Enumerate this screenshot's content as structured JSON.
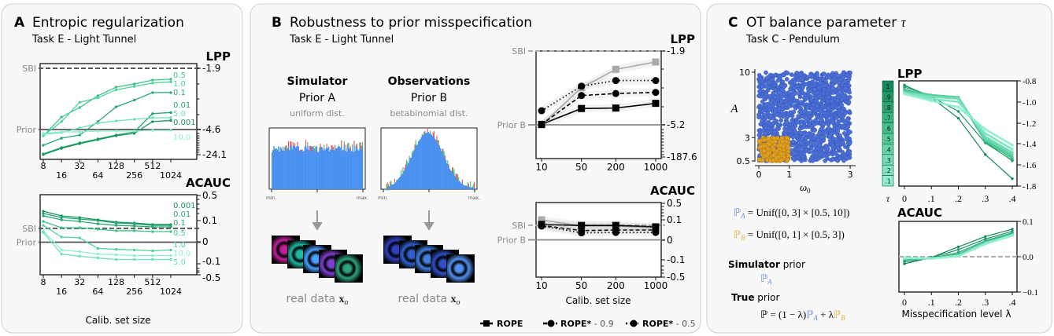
{
  "panels": {
    "A": {
      "letter": "A",
      "title": "Entropic regularization",
      "subtitle": "Task E - Light Tunnel"
    },
    "B": {
      "letter": "B",
      "title": "Robustness to prior misspecification",
      "subtitle": "Task E - Light Tunnel",
      "simulator": {
        "heading": "Simulator",
        "prior": "Prior A",
        "dist": "uniform dist.",
        "min": "min.",
        "max": "max.",
        "caption": "real data ",
        "caption_math": "x",
        "caption_sub": "o",
        "image_colors": [
          "#c0209a",
          "#20b8a0",
          "#4aa0ff",
          "#8040d0",
          "#30a080"
        ]
      },
      "observations": {
        "heading": "Observations",
        "prior": "Prior B",
        "dist": "betabinomial dist.",
        "min": "min.",
        "max": "max.",
        "caption": "real data ",
        "caption_math": "x",
        "caption_sub": "o",
        "image_colors": [
          "#3040c0",
          "#3060d0",
          "#4080e0",
          "#3050c8",
          "#5090f0"
        ]
      },
      "legend": [
        {
          "label": "ROPE",
          "suffix": "",
          "style": "solid",
          "marker": "square"
        },
        {
          "label": "ROPE*",
          "suffix": " - 0.9",
          "style": "dashed",
          "marker": "circle"
        },
        {
          "label": "ROPE*",
          "suffix": " - 0.5",
          "style": "dotted",
          "marker": "circle"
        }
      ]
    },
    "C": {
      "letter": "C",
      "title": "OT balance parameter ",
      "title_symbol": "τ",
      "subtitle": "Task C - Pendulum",
      "formula_a": {
        "sym": "ℙ",
        "sub": "A",
        "rest": " = Unif([0, 3] × [0.5, 10])"
      },
      "formula_b": {
        "sym": "ℙ",
        "sub": "B",
        "rest": " = Unif([0, 1] × [0.5, 3])"
      },
      "simulator_prior": {
        "bold": "Simulator",
        "rest": " prior",
        "sym": "ℙ",
        "sub": "A"
      },
      "true_prior": {
        "bold": "True",
        "rest": " prior",
        "formula_start": "ℙ = (1 − λ)",
        "sym_a": "ℙ",
        "sub_a": "A",
        "plus": " + λ",
        "sym_b": "ℙ",
        "sub_b": "B"
      },
      "colorbar": {
        "label": "τ",
        "ticks": [
          "1",
          ".9",
          ".8",
          ".7",
          ".6",
          ".5",
          ".4",
          ".3",
          ".2",
          ".1"
        ]
      }
    }
  },
  "colors": {
    "prior_A": "#5b7fe0",
    "prior_B": "#e0a828",
    "hist_bar": "#4a90f0",
    "rope": "#000000",
    "reference_gray": "#aaaaaa"
  },
  "chart_data": [
    {
      "id": "A-LPP",
      "type": "line",
      "ylabel": "LPP",
      "x": [
        8,
        16,
        32,
        64,
        128,
        256,
        512,
        1024
      ],
      "xticks": [
        "8",
        "16",
        "32",
        "64",
        "128",
        "256",
        "512",
        "1024"
      ],
      "yticks": [
        "-1.9",
        "-4.6",
        "-24.1"
      ],
      "references": [
        {
          "label": "SBI",
          "value": -1.9,
          "style": "dashed"
        },
        {
          "label": "Prior",
          "value": -4.6,
          "style": "solid"
        }
      ],
      "series": [
        {
          "name": "0.5",
          "color": "#3ec58b",
          "values": [
            -9.5,
            -4.05,
            -3.63,
            -3.11,
            -2.73,
            -2.59,
            -2.42,
            -2.38
          ]
        },
        {
          "name": "1.0",
          "color": "#4fd39a",
          "values": [
            -9.5,
            -4.25,
            -3.4,
            -3.2,
            -2.85,
            -2.7,
            -2.55,
            -2.5
          ]
        },
        {
          "name": "0.1",
          "color": "#2aa874",
          "values": [
            -16.8,
            -11.3,
            -8.9,
            -4.25,
            -3.6,
            -3.3,
            -2.97,
            -2.97
          ]
        },
        {
          "name": "0.01",
          "color": "#23a56c",
          "values": [
            -23.5,
            -18.6,
            -14.96,
            -11.9,
            -8.9,
            -6.4,
            -3.9,
            -3.85
          ]
        },
        {
          "name": "5.0",
          "color": "#6fe0b4",
          "values": [
            -8.3,
            -7.0,
            -4.53,
            -4.32,
            -4.22,
            -4.15,
            -4.08,
            -4.08
          ]
        },
        {
          "name": "0.001",
          "color": "#1a9660",
          "values": [
            -24.1,
            -19.2,
            -15.6,
            -12.5,
            -9.5,
            -7.6,
            -4.25,
            -4.2
          ]
        },
        {
          "name": "10.0",
          "color": "#8ff0d0",
          "values": [
            -7.6,
            -6.4,
            -6.4,
            -5.8,
            -5.8,
            -5.8,
            -5.2,
            -5.2
          ]
        }
      ]
    },
    {
      "id": "A-ACAUC",
      "type": "line",
      "ylabel": "ACAUC",
      "xlabel": "Calib. set size",
      "x": [
        8,
        16,
        32,
        64,
        128,
        256,
        512,
        1024
      ],
      "xticks": [
        "8",
        "16",
        "32",
        "64",
        "128",
        "256",
        "512",
        "1024"
      ],
      "yticks": [
        "0.5",
        "0.1",
        "0",
        "-0.1",
        "-0.5"
      ],
      "references": [
        {
          "label": "SBI",
          "value": 0.064,
          "style": "dashed"
        },
        {
          "label": "Prior",
          "value": 0,
          "style": "solid"
        }
      ],
      "series": [
        {
          "name": "0.001",
          "color": "#1a9660",
          "values": [
            0.245,
            0.173,
            0.148,
            0.112,
            0.093,
            0.089,
            0.082,
            0.082
          ]
        },
        {
          "name": "0.01",
          "color": "#23a56c",
          "values": [
            0.21,
            0.148,
            0.124,
            0.1,
            0.089,
            0.085,
            0.078,
            0.078
          ]
        },
        {
          "name": "0.1",
          "color": "#2aa874",
          "values": [
            0.173,
            0.112,
            0.096,
            0.085,
            0.078,
            0.075,
            0.071,
            0.071
          ]
        },
        {
          "name": "0.5",
          "color": "#3ec58b",
          "values": [
            0.096,
            0.067,
            0.067,
            0.06,
            0.053,
            0.053,
            0.049,
            0.049
          ]
        },
        {
          "name": "1.0",
          "color": "#4fd39a",
          "values": [
            0.078,
            0.024,
            0.02,
            -0.029,
            -0.033,
            -0.036,
            -0.04,
            -0.036
          ]
        },
        {
          "name": "10.0",
          "color": "#8ff0d0",
          "values": [
            0.053,
            -0.036,
            -0.044,
            -0.055,
            -0.058,
            -0.062,
            -0.062,
            -0.062
          ]
        },
        {
          "name": "5.0",
          "color": "#6fe0b4",
          "values": [
            0.045,
            -0.055,
            -0.065,
            -0.073,
            -0.08,
            -0.08,
            -0.08,
            -0.08
          ]
        }
      ]
    },
    {
      "id": "B-LPP",
      "type": "line",
      "ylabel": "LPP",
      "x": [
        10,
        50,
        200,
        1000
      ],
      "xticks": [
        "10",
        "50",
        "200",
        "1000"
      ],
      "xscale": "log",
      "yticks": [
        "-1.9",
        "-5.2",
        "-187.6"
      ],
      "references": [
        {
          "label": "SBI",
          "value": -1.9,
          "style": "dashed"
        },
        {
          "label": "Prior B",
          "value": -5.2,
          "style": "solid"
        }
      ],
      "series": [
        {
          "color": "#aaaaaa",
          "style": "solid",
          "marker": "square",
          "values": [
            -5.35,
            -3.54,
            -2.72,
            -2.39
          ]
        },
        {
          "name": "ROPE",
          "color": "#000000",
          "style": "solid",
          "marker": "square",
          "values": [
            -5.18,
            -4.47,
            -4.45,
            -4.24
          ]
        },
        {
          "name": "ROPE* - 0.9",
          "color": "#000000",
          "style": "dashed",
          "marker": "circle",
          "values": [
            -5.18,
            -3.89,
            -3.8,
            -3.75
          ]
        },
        {
          "name": "ROPE* - 0.5",
          "color": "#000000",
          "style": "dotted",
          "marker": "circle",
          "values": [
            -4.57,
            -3.47,
            -3.22,
            -3.22
          ]
        }
      ]
    },
    {
      "id": "B-ACAUC",
      "type": "line",
      "ylabel": "ACAUC",
      "xlabel": "Calib. set size",
      "x": [
        10,
        50,
        200,
        1000
      ],
      "xticks": [
        "10",
        "50",
        "200",
        "1000"
      ],
      "xscale": "log",
      "yticks": [
        "0.5",
        "0.1",
        "0",
        "-0.1",
        "-0.5"
      ],
      "references": [
        {
          "label": "SBI",
          "value": 0.073,
          "style": "dashed"
        },
        {
          "label": "Prior B",
          "value": 0,
          "style": "solid"
        }
      ],
      "series": [
        {
          "color": "#aaaaaa",
          "style": "solid",
          "marker": "square",
          "values": [
            0.1,
            0.069,
            0.069,
            0.06
          ]
        },
        {
          "name": "ROPE",
          "color": "#000000",
          "style": "solid",
          "marker": "square",
          "values": [
            0.077,
            0.072,
            0.072,
            0.065
          ]
        },
        {
          "name": "ROPE* - 0.9",
          "color": "#000000",
          "style": "dashed",
          "marker": "circle",
          "values": [
            0.072,
            0.046,
            0.049,
            0.049
          ]
        },
        {
          "name": "ROPE* - 0.5",
          "color": "#000000",
          "style": "dotted",
          "marker": "circle",
          "values": [
            0.069,
            0.035,
            0.037,
            0.037
          ]
        }
      ]
    },
    {
      "id": "C-scatter",
      "type": "scatter",
      "xlabel": "ω",
      "xlabel_sub": "0",
      "ylabel": "A",
      "xticks": [
        "0",
        "1",
        "3"
      ],
      "yticks": [
        "10",
        "3",
        "0.5"
      ],
      "xlim": [
        0,
        3
      ],
      "ylim": [
        0.5,
        10
      ],
      "regions": [
        {
          "prior": "P_A",
          "color": "#4b6fd6",
          "x": [
            0,
            3
          ],
          "y": [
            0.5,
            10
          ]
        },
        {
          "prior": "P_B",
          "color": "#e0a020",
          "x": [
            0,
            1
          ],
          "y": [
            0.5,
            3
          ]
        }
      ]
    },
    {
      "id": "C-LPP",
      "type": "line",
      "ylabel": "LPP",
      "x": [
        0,
        0.1,
        0.2,
        0.3,
        0.4
      ],
      "xticks": [
        "0",
        ".1",
        ".2",
        ".3",
        ".4"
      ],
      "yticks": [
        "-0.8",
        "-1.0",
        "-1.2",
        "-1.4",
        "-1.6",
        "-1.8"
      ],
      "ylim": [
        -1.8,
        -0.8
      ],
      "series": [
        {
          "name": "1",
          "color": "#14875c",
          "values": [
            -0.84,
            -0.96,
            -1.155,
            -1.5,
            -1.73
          ]
        },
        {
          "name": ".9",
          "color": "#1f9866",
          "values": [
            -0.845,
            -0.95,
            -1.09,
            -1.39,
            -1.555
          ]
        },
        {
          "name": ".8",
          "color": "#2ba672",
          "values": [
            -0.86,
            -0.94,
            -0.97,
            -1.38,
            -1.56
          ]
        },
        {
          "name": ".7",
          "color": "#37b47e",
          "values": [
            -0.88,
            -0.94,
            -0.96,
            -1.37,
            -1.54
          ]
        },
        {
          "name": ".6",
          "color": "#45c08c",
          "values": [
            -0.89,
            -0.935,
            -0.955,
            -1.37,
            -1.53
          ]
        },
        {
          "name": ".5",
          "color": "#55cb9a",
          "values": [
            -0.9,
            -0.94,
            -0.955,
            -1.36,
            -1.52
          ]
        },
        {
          "name": ".4",
          "color": "#64d5a8",
          "values": [
            -0.91,
            -0.945,
            -0.96,
            -1.35,
            -1.5
          ]
        },
        {
          "name": ".3",
          "color": "#72ddb6",
          "values": [
            -0.915,
            -0.95,
            -0.97,
            -1.33,
            -1.48
          ]
        },
        {
          "name": ".2",
          "color": "#80e5c4",
          "values": [
            -0.92,
            -0.97,
            -1.0,
            -1.3,
            -1.45
          ]
        },
        {
          "name": ".1",
          "color": "#90eed2",
          "values": [
            -0.925,
            -0.99,
            -1.05,
            -1.26,
            -1.41
          ]
        }
      ]
    },
    {
      "id": "C-ACAUC",
      "type": "line",
      "ylabel": "ACAUC",
      "xlabel": "Misspecification level λ",
      "x": [
        0,
        0.1,
        0.2,
        0.3,
        0.4
      ],
      "xticks": [
        "0",
        ".1",
        ".2",
        ".3",
        ".4"
      ],
      "yticks": [
        "0.1",
        "0.0",
        "−0.1"
      ],
      "ylim": [
        -0.1,
        0.1
      ],
      "references": [
        {
          "value": 0.0,
          "style": "dashed"
        }
      ],
      "series": [
        {
          "name": "1",
          "color": "#14875c",
          "values": [
            -0.02,
            -0.002,
            0.028,
            0.057,
            0.078
          ]
        },
        {
          "name": ".9",
          "color": "#1f9866",
          "values": [
            -0.015,
            -0.003,
            0.02,
            0.05,
            0.072
          ]
        },
        {
          "name": ".8",
          "color": "#2ba672",
          "values": [
            -0.01,
            -0.004,
            0.012,
            0.045,
            0.068
          ]
        },
        {
          "name": ".7",
          "color": "#37b47e",
          "values": [
            -0.008,
            -0.004,
            0.008,
            0.042,
            0.066
          ]
        },
        {
          "name": ".6",
          "color": "#45c08c",
          "values": [
            -0.006,
            -0.005,
            0.005,
            0.04,
            0.064
          ]
        },
        {
          "name": ".5",
          "color": "#55cb9a",
          "values": [
            -0.005,
            -0.005,
            0.003,
            0.04,
            0.063
          ]
        },
        {
          "name": ".4",
          "color": "#64d5a8",
          "values": [
            -0.005,
            -0.005,
            0.002,
            0.039,
            0.062
          ]
        },
        {
          "name": ".3",
          "color": "#72ddb6",
          "values": [
            -0.004,
            -0.005,
            0.002,
            0.038,
            0.061
          ]
        },
        {
          "name": ".2",
          "color": "#80e5c4",
          "values": [
            -0.004,
            -0.005,
            0.002,
            0.037,
            0.06
          ]
        },
        {
          "name": ".1",
          "color": "#90eed2",
          "values": [
            -0.003,
            -0.005,
            0.002,
            0.036,
            0.06
          ]
        }
      ]
    }
  ]
}
